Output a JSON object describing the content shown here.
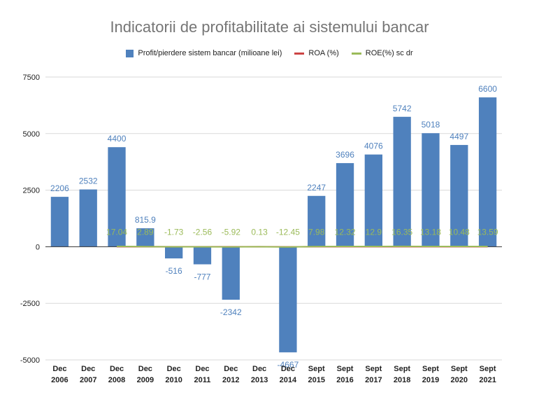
{
  "chart_data": {
    "type": "bar",
    "title": "Indicatorii de profitabilitate ai sistemului bancar",
    "categories": [
      [
        "Dec",
        "2006"
      ],
      [
        "Dec",
        "2007"
      ],
      [
        "Dec",
        "2008"
      ],
      [
        "Dec",
        "2009"
      ],
      [
        "Dec",
        "2010"
      ],
      [
        "Dec",
        "2011"
      ],
      [
        "Dec",
        "2012"
      ],
      [
        "Dec",
        "2013"
      ],
      [
        "Dec",
        "2014"
      ],
      [
        "Sept",
        "2015"
      ],
      [
        "Sept",
        "2016"
      ],
      [
        "Sept",
        "2017"
      ],
      [
        "Sept",
        "2018"
      ],
      [
        "Sept",
        "2019"
      ],
      [
        "Sept",
        "2020"
      ],
      [
        "Sept",
        "2021"
      ]
    ],
    "series": [
      {
        "name": "Profit/pierdere sistem bancar (milioane lei)",
        "type": "bar",
        "color": "#4f81bd",
        "values": [
          2206,
          2532,
          4400,
          815.9,
          -516,
          -777,
          -2342,
          null,
          -4667,
          2247,
          3696,
          4076,
          5742,
          5018,
          4497,
          6600
        ],
        "labels": [
          "2206",
          "2532",
          "4400",
          "815.9",
          "-516",
          "-777",
          "-2342",
          "",
          "-4667",
          "2247",
          "3696",
          "4076",
          "5742",
          "5018",
          "4497",
          "6600"
        ]
      },
      {
        "name": "ROA (%)",
        "type": "line",
        "color": "#cc4444",
        "values": [
          null,
          null,
          1.64,
          0.25,
          -0.15,
          -0.23,
          -0.64,
          0.01,
          -1.22,
          0.82,
          1.24,
          1.28,
          1.62,
          1.42,
          1.03,
          1.29
        ]
      },
      {
        "name": "ROE(%) sc dr",
        "type": "line",
        "color": "#9bbb59",
        "values": [
          null,
          null,
          17.04,
          2.89,
          -1.73,
          -2.56,
          -5.92,
          0.13,
          -12.45,
          7.98,
          12.32,
          12.9,
          16.35,
          13.18,
          10.48,
          13.59
        ],
        "labels": [
          "",
          "",
          "17.04",
          "2.89",
          "-1.73",
          "-2.56",
          "-5.92",
          "0.13",
          "-12.45",
          "7.98",
          "12.32",
          "12.9",
          "16.35",
          "13.18",
          "10.48",
          "13.59"
        ]
      }
    ],
    "y_axis": {
      "ticks": [
        "7500",
        "5000",
        "2500",
        "0",
        "-2500",
        "-5000"
      ],
      "ylim": [
        -5000,
        7500
      ]
    },
    "grid": true,
    "legend_position": "top"
  }
}
